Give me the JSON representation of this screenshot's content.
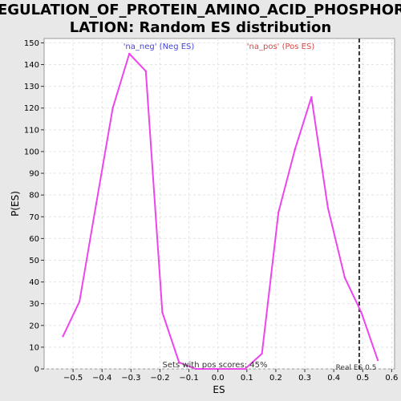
{
  "chart_data": {
    "type": "line",
    "title_lines": [
      "REGULATION_OF_PROTEIN_AMINO_ACID_PHOSPHORY",
      "LATION: Random ES distribution"
    ],
    "xlabel": "ES",
    "ylabel": "P(ES)",
    "xlim": [
      -0.6,
      0.61
    ],
    "ylim": [
      0,
      152
    ],
    "x_ticks": [
      -0.5,
      -0.4,
      -0.3,
      -0.2,
      -0.1,
      0.0,
      0.1,
      0.2,
      0.3,
      0.4,
      0.5,
      0.6
    ],
    "x_tick_labels": [
      "−0.5",
      "−0.4",
      "−0.3",
      "−0.2",
      "−0.1",
      "0.0",
      "0.1",
      "0.2",
      "0.3",
      "0.4",
      "0.5",
      "0.6"
    ],
    "y_ticks": [
      0,
      10,
      20,
      30,
      40,
      50,
      60,
      70,
      80,
      90,
      100,
      110,
      120,
      130,
      140,
      150
    ],
    "y_tick_labels": [
      "0",
      "10",
      "20",
      "30",
      "40",
      "50",
      "60",
      "70",
      "80",
      "90",
      "100",
      "110",
      "120",
      "130",
      "140",
      "150"
    ],
    "grid": true,
    "series": [
      {
        "color": "#ee44ee",
        "x": [
          -0.535,
          -0.478,
          -0.42,
          -0.363,
          -0.306,
          -0.249,
          -0.192,
          -0.134,
          -0.077,
          -0.02,
          0.037,
          0.094,
          0.152,
          0.209,
          0.266,
          0.323,
          0.38,
          0.438,
          0.495,
          0.552
        ],
        "y": [
          15,
          31,
          76,
          120,
          145,
          137,
          26,
          3,
          0,
          0,
          0,
          0,
          7,
          72,
          101,
          125,
          74,
          42,
          26,
          4
        ]
      }
    ],
    "real_es": 0.488,
    "annotations": {
      "neg_label": "'na_neg' (Neg ES)",
      "pos_label": "'na_pos' (Pos ES)",
      "sets_text": "Sets with pos scores: 45%",
      "real_es_label": "Real ES 0.5"
    },
    "colors": {
      "line": "#ee44ee",
      "neg_text": "#4444dd",
      "pos_text": "#dd4444",
      "real_es_line": "#333333",
      "grid": "#e4e4e4"
    }
  }
}
